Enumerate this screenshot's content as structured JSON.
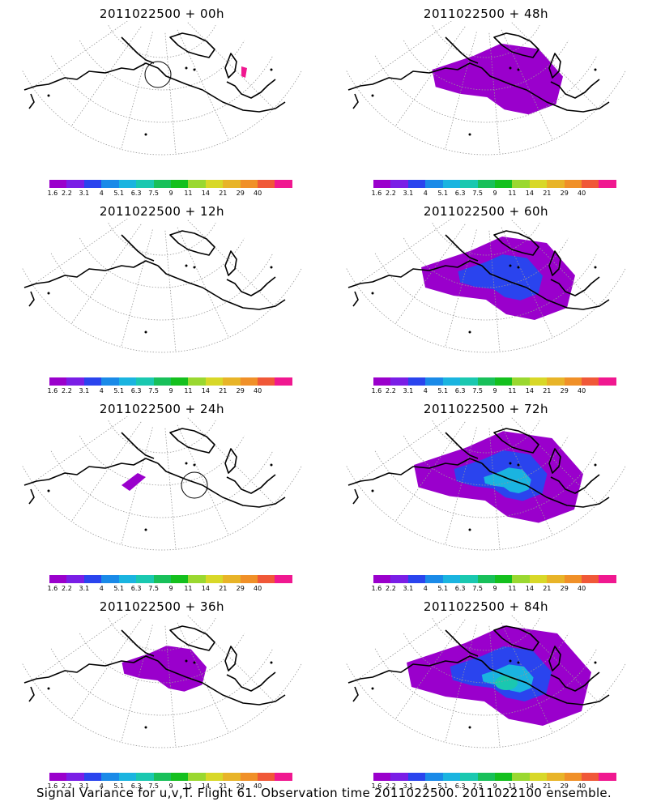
{
  "panels": [
    {
      "title": "2011022500 + 00h",
      "intensity": 0
    },
    {
      "title": "2011022500 + 48h",
      "intensity": 2
    },
    {
      "title": "2011022500 + 12h",
      "intensity": 0
    },
    {
      "title": "2011022500 + 60h",
      "intensity": 3
    },
    {
      "title": "2011022500 + 24h",
      "intensity": 0
    },
    {
      "title": "2011022500 + 72h",
      "intensity": 4
    },
    {
      "title": "2011022500 + 36h",
      "intensity": 1
    },
    {
      "title": "2011022500 + 84h",
      "intensity": 5
    }
  ],
  "colorbar": {
    "labels": [
      "1.6",
      "2.2",
      "3.1",
      "4",
      "5.1",
      "6.3",
      "7.5",
      "9",
      "11",
      "14",
      "21",
      "29",
      "40"
    ],
    "colors": [
      "#9a00cc",
      "#7a1ee6",
      "#2a44ee",
      "#1a8ae8",
      "#1ab4e0",
      "#1ac8b0",
      "#18c05a",
      "#14c01e",
      "#9ad830",
      "#d8d828",
      "#e8b428",
      "#f09028",
      "#f05838",
      "#f01890"
    ]
  },
  "footer": "Signal Variance for u,v,T. Flight 61. Observation time 2011022500. 2011022100 ensemble."
}
